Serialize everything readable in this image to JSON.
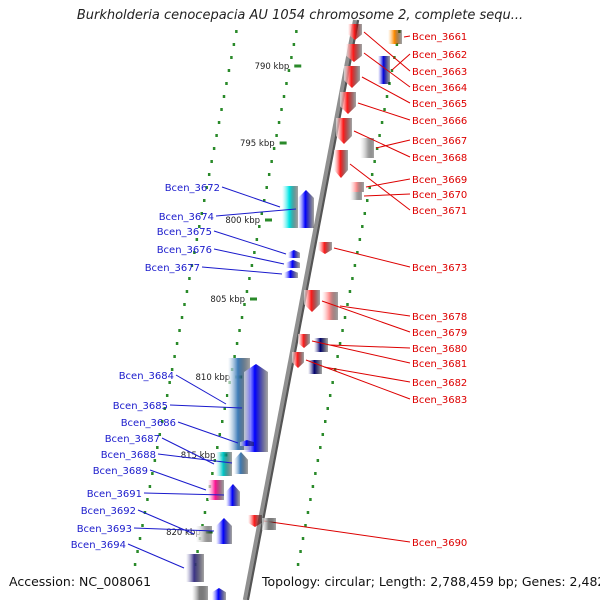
{
  "title": "Burkholderia cenocepacia AU 1054 chromosome 2, complete sequ...",
  "footer": {
    "accession": "Accession: NC_008061",
    "summary": "Topology: circular; Length: 2,788,459 bp; Genes: 2,482"
  },
  "colors": {
    "backbone": "#909090",
    "forward_label": "#1a1acc",
    "reverse_label": "#dd0000",
    "tick": "#2a8a2a",
    "strand_dots": "#2a8a2a"
  },
  "ruler": [
    "790 kbp",
    "795 kbp",
    "800 kbp",
    "805 kbp",
    "810 kbp",
    "815 kbp",
    "820 kbp"
  ],
  "reverse_genes": [
    {
      "label": "Bcen_3661",
      "color": "#ff8c00"
    },
    {
      "label": "Bcen_3662",
      "color": "#0000dd"
    },
    {
      "label": "Bcen_3663",
      "color": "#ff1a1a"
    },
    {
      "label": "Bcen_3664",
      "color": "#ff1a1a"
    },
    {
      "label": "Bcen_3665",
      "color": "#ff1a1a"
    },
    {
      "label": "Bcen_3666",
      "color": "#ff1a1a"
    },
    {
      "label": "Bcen_3667",
      "color": "#c0c0c0"
    },
    {
      "label": "Bcen_3668",
      "color": "#ff1a1a"
    },
    {
      "label": "Bcen_3669",
      "color": "#ff9090"
    },
    {
      "label": "Bcen_3670",
      "color": "#c0c0c0"
    },
    {
      "label": "Bcen_3671",
      "color": "#ff1a1a"
    },
    {
      "label": "Bcen_3673",
      "color": "#ff1a1a"
    },
    {
      "label": "Bcen_3678",
      "color": "#ff9090"
    },
    {
      "label": "Bcen_3679",
      "color": "#ff1a1a"
    },
    {
      "label": "Bcen_3680",
      "color": "#00006e"
    },
    {
      "label": "Bcen_3681",
      "color": "#ff1a1a"
    },
    {
      "label": "Bcen_3682",
      "color": "#00006e"
    },
    {
      "label": "Bcen_3683",
      "color": "#ff1a1a"
    },
    {
      "label": "Bcen_3690",
      "color": "#ff1a1a"
    }
  ],
  "forward_genes": [
    {
      "label": "Bcen_3672",
      "color": "#00e5e5"
    },
    {
      "label": "Bcen_3674",
      "color": "#0000ff"
    },
    {
      "label": "Bcen_3675",
      "color": "#0000ff"
    },
    {
      "label": "Bcen_3676",
      "color": "#0000ff"
    },
    {
      "label": "Bcen_3677",
      "color": "#0000ff"
    },
    {
      "label": "Bcen_3684",
      "color": "#3e7cb8"
    },
    {
      "label": "Bcen_3685",
      "color": "#0000ff"
    },
    {
      "label": "Bcen_3686",
      "color": "#0000ff"
    },
    {
      "label": "Bcen_3687",
      "color": "#00c8c8"
    },
    {
      "label": "Bcen_3688",
      "color": "#3e7cb8"
    },
    {
      "label": "Bcen_3689",
      "color": "#ff1493"
    },
    {
      "label": "Bcen_3691",
      "color": "#0000ff"
    },
    {
      "label": "Bcen_3692",
      "color": "#c0c0c0"
    },
    {
      "label": "Bcen_3693",
      "color": "#0000ff"
    },
    {
      "label": "Bcen_3694",
      "color": "#3b3488"
    }
  ]
}
